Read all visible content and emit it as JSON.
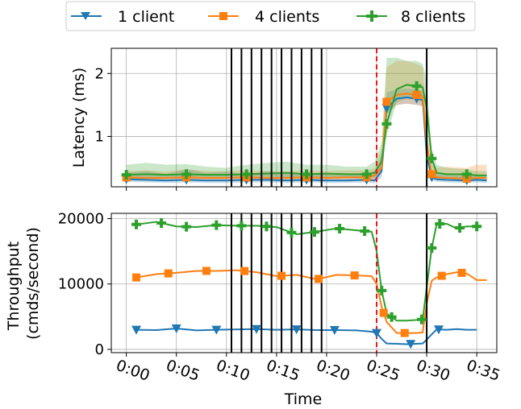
{
  "chart_data": {
    "type": "line",
    "xlabel": "Time",
    "x_ticks": [
      "0:00",
      "0:05",
      "0:10",
      "0:15",
      "0:20",
      "0:25",
      "0:30",
      "0:35"
    ],
    "x_tick_values": [
      0,
      5,
      10,
      15,
      20,
      25,
      30,
      35
    ],
    "xlim": [
      -1.5,
      37
    ],
    "legend": {
      "placement": "top-center",
      "entries": [
        {
          "name": "1 client",
          "color": "#1f77b4",
          "marker": "triangle-down"
        },
        {
          "name": "4 clients",
          "color": "#ff7f0e",
          "marker": "square"
        },
        {
          "name": "8 clients",
          "color": "#2ca02c",
          "marker": "plus"
        }
      ]
    },
    "event_lines": {
      "black_solid": [
        10.5,
        11.5,
        12.5,
        13.5,
        14.5,
        15.5,
        16.5,
        17.5,
        18.5,
        19.5,
        30
      ],
      "red_dashed": [
        25
      ]
    },
    "panels": [
      {
        "name": "latency",
        "ylabel": "Latency (ms)",
        "ylim": [
          0.2,
          2.4
        ],
        "y_ticks": [
          1,
          2
        ],
        "grid": true,
        "series": [
          {
            "name": "1 client",
            "color": "#1f77b4",
            "x": [
              0,
              2,
              4,
              6,
              8,
              10,
              12,
              14,
              16,
              18,
              20,
              22,
              24,
              24.8,
              25.5,
              26,
              27,
              28,
              29,
              29.6,
              30,
              30.5,
              31,
              32,
              34,
              35,
              36
            ],
            "y": [
              0.32,
              0.31,
              0.3,
              0.31,
              0.3,
              0.3,
              0.31,
              0.31,
              0.3,
              0.31,
              0.3,
              0.3,
              0.31,
              0.3,
              0.45,
              1.45,
              1.6,
              1.62,
              1.6,
              1.58,
              0.7,
              0.35,
              0.32,
              0.31,
              0.3,
              0.31,
              0.3
            ],
            "band_low": [
              0.28,
              0.27,
              0.26,
              0.27,
              0.26,
              0.26,
              0.27,
              0.27,
              0.26,
              0.27,
              0.26,
              0.26,
              0.27,
              0.26,
              0.35,
              1.35,
              1.5,
              1.52,
              1.5,
              1.48,
              0.55,
              0.3,
              0.28,
              0.27,
              0.26,
              0.27,
              0.26
            ],
            "band_high": [
              0.42,
              0.45,
              0.4,
              0.48,
              0.42,
              0.44,
              0.4,
              0.45,
              0.42,
              0.4,
              0.42,
              0.4,
              0.42,
              0.45,
              0.7,
              1.7,
              1.75,
              1.76,
              1.75,
              1.72,
              1.0,
              0.45,
              0.4,
              0.4,
              0.38,
              0.4,
              0.38
            ]
          },
          {
            "name": "4 clients",
            "color": "#ff7f0e",
            "x": [
              0,
              2,
              4,
              6,
              8,
              10,
              12,
              14,
              16,
              18,
              20,
              22,
              24,
              24.8,
              25.5,
              26,
              27,
              28,
              29,
              29.6,
              30,
              30.5,
              31,
              32,
              34,
              35,
              36
            ],
            "y": [
              0.35,
              0.34,
              0.34,
              0.35,
              0.34,
              0.34,
              0.35,
              0.34,
              0.34,
              0.35,
              0.34,
              0.35,
              0.35,
              0.38,
              0.5,
              1.55,
              1.66,
              1.68,
              1.66,
              1.64,
              0.9,
              0.4,
              0.35,
              0.34,
              0.33,
              0.34,
              0.34
            ],
            "band_low": [
              0.3,
              0.3,
              0.3,
              0.3,
              0.3,
              0.3,
              0.3,
              0.3,
              0.3,
              0.3,
              0.3,
              0.3,
              0.3,
              0.32,
              0.4,
              1.35,
              1.5,
              1.52,
              1.5,
              1.48,
              0.7,
              0.33,
              0.3,
              0.3,
              0.28,
              0.3,
              0.3
            ],
            "band_high": [
              0.45,
              0.46,
              0.44,
              0.48,
              0.45,
              0.45,
              0.46,
              0.45,
              0.45,
              0.46,
              0.45,
              0.46,
              0.46,
              0.5,
              0.8,
              2.1,
              2.2,
              2.2,
              2.15,
              2.1,
              1.2,
              0.55,
              0.5,
              0.52,
              0.5,
              0.55,
              0.55
            ]
          },
          {
            "name": "8 clients",
            "color": "#2ca02c",
            "x": [
              0,
              2,
              4,
              6,
              8,
              10,
              12,
              14,
              16,
              18,
              20,
              22,
              24,
              24.8,
              25.5,
              26,
              27,
              28,
              29,
              29.6,
              30,
              30.5,
              31,
              32,
              34,
              35,
              36
            ],
            "y": [
              0.39,
              0.4,
              0.39,
              0.4,
              0.39,
              0.39,
              0.4,
              0.41,
              0.42,
              0.4,
              0.41,
              0.4,
              0.4,
              0.42,
              0.6,
              1.2,
              1.75,
              1.82,
              1.8,
              1.78,
              1.45,
              0.65,
              0.42,
              0.4,
              0.4,
              0.38,
              0.38
            ],
            "band_low": [
              0.33,
              0.33,
              0.33,
              0.33,
              0.33,
              0.33,
              0.34,
              0.35,
              0.35,
              0.34,
              0.35,
              0.34,
              0.34,
              0.35,
              0.45,
              1.0,
              1.55,
              1.6,
              1.58,
              1.55,
              1.2,
              0.5,
              0.35,
              0.33,
              0.33,
              0.32,
              0.32
            ],
            "band_high": [
              0.55,
              0.58,
              0.55,
              0.56,
              0.52,
              0.5,
              0.55,
              0.58,
              0.6,
              0.55,
              0.55,
              0.52,
              0.52,
              0.6,
              0.9,
              2.25,
              2.25,
              2.2,
              2.2,
              2.15,
              1.9,
              0.8,
              0.55,
              0.5,
              0.48,
              0.45,
              0.45
            ]
          }
        ]
      },
      {
        "name": "throughput",
        "ylabel": "Throughput\n(cmds/second)",
        "ylabel_lines": [
          "Throughput",
          "(cmds/second)"
        ],
        "ylim": [
          -500,
          20800
        ],
        "y_ticks": [
          0,
          10000,
          20000
        ],
        "y_tick_labels": [
          "0",
          "10000",
          "20000"
        ],
        "grid": true,
        "series": [
          {
            "name": "1 client",
            "color": "#1f77b4",
            "x": [
              1,
              3,
              5,
              7,
              9,
              11,
              13,
              15,
              17,
              19,
              21,
              23,
              24.5,
              25,
              25.5,
              26,
              27,
              28,
              29,
              29.6,
              30,
              30.5,
              31,
              32,
              33,
              34,
              35
            ],
            "y": [
              3000,
              2950,
              3200,
              2900,
              3000,
              3050,
              3100,
              3000,
              3050,
              2950,
              2950,
              2900,
              2700,
              2500,
              1600,
              900,
              850,
              800,
              850,
              900,
              1500,
              2300,
              3050,
              3000,
              3100,
              3000,
              3000
            ],
            "markers_x": [
              1,
              5,
              9,
              13,
              17,
              20.8,
              25,
              28.4,
              31.2
            ]
          },
          {
            "name": "4 clients",
            "color": "#ff7f0e",
            "x": [
              1,
              3,
              5,
              7,
              9,
              11,
              13,
              15,
              17,
              19,
              21,
              23,
              24.5,
              25,
              25.5,
              26,
              27,
              28,
              29,
              29.6,
              30,
              30.5,
              31,
              32,
              33,
              34,
              35,
              36
            ],
            "y": [
              11000,
              11500,
              11700,
              12000,
              12000,
              12100,
              11800,
              11200,
              11400,
              10700,
              11400,
              11300,
              11200,
              10000,
              6500,
              4200,
              2500,
              2500,
              2500,
              2600,
              7000,
              10500,
              11000,
              11500,
              11800,
              11600,
              10600,
              10600
            ],
            "markers_x": [
              1,
              4.2,
              8,
              11.8,
              15.5,
              19.2,
              22.8,
              25.7,
              27.8,
              31.5,
              33.5
            ]
          },
          {
            "name": "8 clients",
            "color": "#2ca02c",
            "x": [
              1,
              3,
              5,
              7,
              9,
              11,
              13,
              15,
              17,
              19,
              21,
              23,
              24.5,
              25,
              25.5,
              26,
              27,
              28,
              29,
              29.6,
              30,
              30.5,
              31,
              32,
              33,
              34,
              35
            ],
            "y": [
              19100,
              19500,
              18800,
              18700,
              19000,
              18900,
              18900,
              18700,
              17600,
              18000,
              18500,
              18200,
              18000,
              15000,
              9000,
              5500,
              4400,
              4400,
              4500,
              4600,
              9500,
              15500,
              19200,
              19200,
              18500,
              18800,
              18800
            ],
            "markers_x": [
              1,
              3.5,
              6,
              9,
              11.5,
              14,
              16.5,
              18.8,
              21.3,
              23.8,
              25.5,
              26.5,
              29.5,
              30.5,
              31.3,
              33.3,
              35
            ]
          }
        ]
      }
    ]
  }
}
